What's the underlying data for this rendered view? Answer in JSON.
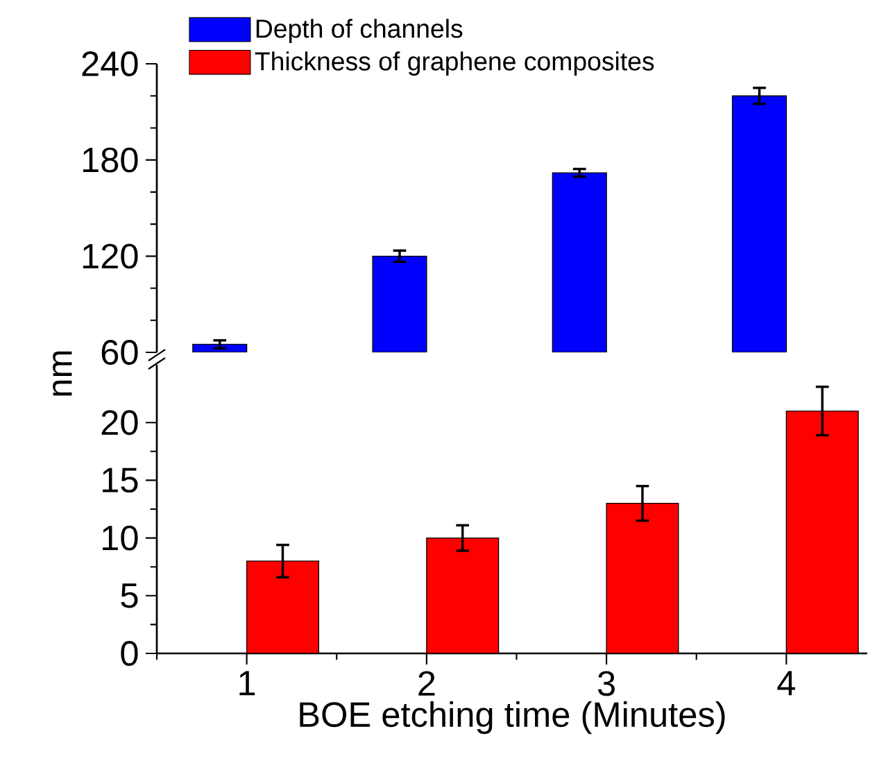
{
  "chart_data": [
    {
      "type": "bar",
      "categories": [
        "1",
        "2",
        "3",
        "4"
      ],
      "ylim": [
        60,
        240
      ],
      "yticks": [
        60,
        120,
        180,
        240
      ],
      "tick_labels": "y",
      "series": [
        {
          "color": "#0000ff",
          "values": [
            65,
            120,
            172,
            220
          ],
          "errors": [
            2.5,
            3.5,
            2.4,
            5
          ]
        }
      ]
    },
    {
      "type": "bar",
      "xlabel": "BOE etching time (Minutes)",
      "ylabel": "nm",
      "categories": [
        "1",
        "2",
        "3",
        "4"
      ],
      "ylim": [
        0,
        25
      ],
      "yticks": [
        0,
        5,
        10,
        15,
        20
      ],
      "legend": "top",
      "series": [
        {
          "name": "Depth of channels",
          "color": "#0000ff",
          "values": [
            null,
            null,
            null,
            null
          ]
        },
        {
          "name": "Thickness of graphene composites",
          "color": "#ff0000",
          "values": [
            8,
            10,
            13,
            21
          ],
          "errors": [
            1.4,
            1.1,
            1.5,
            2.1
          ]
        }
      ]
    }
  ]
}
